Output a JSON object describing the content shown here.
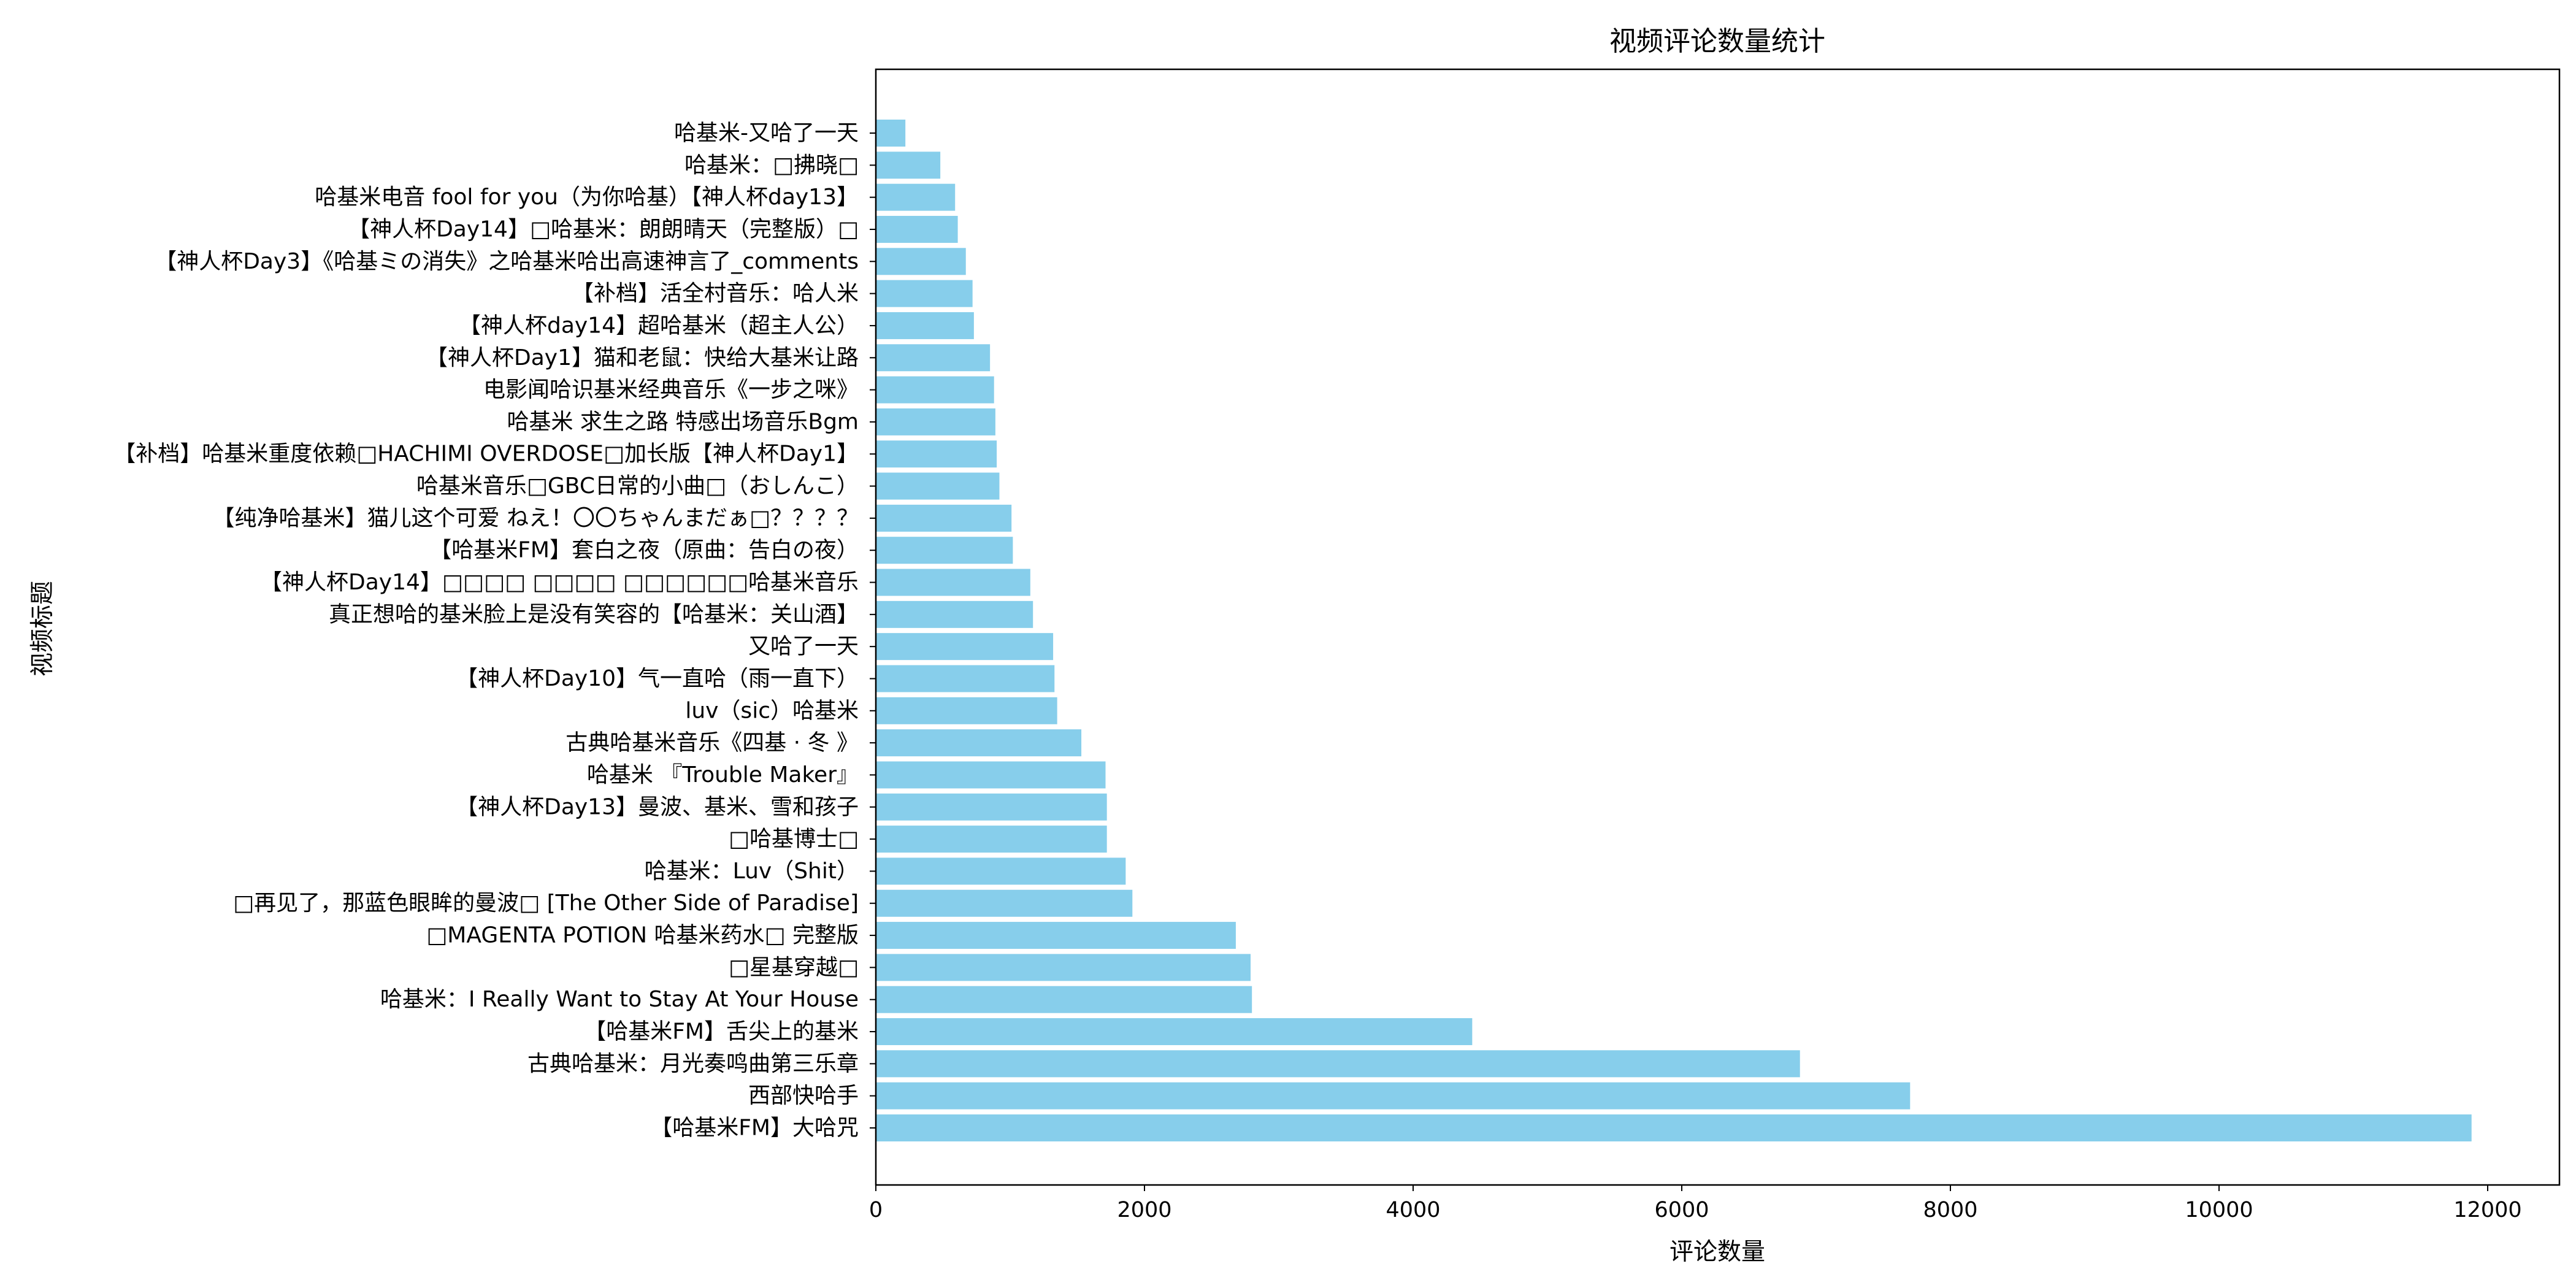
{
  "chart_data": {
    "type": "bar",
    "orientation": "horizontal",
    "title": "视频评论数量统计",
    "xlabel": "评论数量",
    "ylabel": "视频标题",
    "xlim": [
      0,
      12500
    ],
    "xticks": [
      0,
      2000,
      4000,
      6000,
      8000,
      10000,
      12000
    ],
    "xtick_labels": [
      "0",
      "2000",
      "4000",
      "6000",
      "8000",
      "10000",
      "12000"
    ],
    "grid": false,
    "legend": "none",
    "bar_color": "#87ceeb",
    "categories": [
      "【哈基米FM】大哈咒",
      "西部快哈手",
      "古典哈基米：月光奏鸣曲第三乐章",
      "【哈基米FM】舌尖上的基米",
      "哈基米：I Really Want to Stay At Your House",
      "□星基穿越□",
      "□MAGENTA POTION 哈基米药水□ 完整版",
      "□再见了，那蓝色眼眸的曼波□ [The Other Side of Paradise]",
      "哈基米：Luv（Shit）",
      "□哈基博士□",
      "【神人杯Day13】曼波、基米、雪和孩子",
      "哈基米 『Trouble Maker』",
      "古典哈基米音乐《四基 · 冬 》",
      "luv（sic）哈基米",
      "【神人杯Day10】气一直哈（雨一直下）",
      "又哈了一天",
      "真正想哈的基米脸上是没有笑容的【哈基米：关山酒】",
      "【神人杯Day14】□□□□ □□□□ □□□□□□哈基米音乐",
      "【哈基米FM】套白之夜（原曲：告白の夜）",
      "【纯净哈基米】猫儿这个可爱 ねえ！〇〇ちゃんまだぁ□？？？？",
      "哈基米音乐□GBC日常的小曲□（おしんこ）",
      "【补档】哈基米重度依赖□HACHIMI OVERDOSE□加长版【神人杯Day1】",
      "哈基米  求生之路 特感出场音乐Bgm",
      "电影闻哈识基米经典音乐《一步之咪》",
      "【神人杯Day1】猫和老鼠：快给大基米让路",
      "【神人杯day14】超哈基米（超主人公）",
      "【补档】活全村音乐：哈人米",
      "【神人杯Day3】《哈基ミの消失》之哈基米哈出高速神言了_comments",
      "【神人杯Day14】□哈基米：朗朗晴天（完整版）□",
      "哈基米电音 fool for you（为你哈基）【神人杯day13】",
      "哈基米：□拂晓□",
      "哈基米-又哈了一天"
    ],
    "values": [
      11880,
      7700,
      6880,
      4440,
      2800,
      2790,
      2680,
      1910,
      1860,
      1720,
      1720,
      1710,
      1530,
      1350,
      1330,
      1320,
      1170,
      1150,
      1020,
      1010,
      920,
      900,
      890,
      880,
      850,
      730,
      720,
      670,
      610,
      590,
      480,
      220
    ]
  }
}
